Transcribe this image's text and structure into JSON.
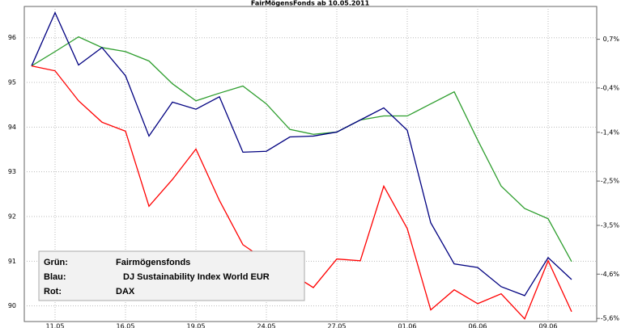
{
  "chart_data": {
    "type": "line",
    "title": "FairMögensFonds ab 10.05.2011",
    "categories": [
      null,
      "11.05",
      null,
      null,
      "16.05",
      null,
      null,
      "19.05",
      null,
      null,
      "24.05",
      null,
      null,
      "27.05",
      null,
      null,
      "01.06",
      null,
      null,
      "06.06",
      null,
      null,
      "09.06",
      null
    ],
    "series": [
      {
        "name": "Fairmögensfonds",
        "legend_label": "Grün:",
        "color": "#2e9e2e",
        "label_color": "#2ea02e",
        "values": [
          95.37,
          95.69,
          96.02,
          95.78,
          95.69,
          95.48,
          94.97,
          94.59,
          94.76,
          94.92,
          94.52,
          93.95,
          93.84,
          93.89,
          94.16,
          94.25,
          94.25,
          94.52,
          94.79,
          93.71,
          92.68,
          92.18,
          91.95,
          90.99
        ]
      },
      {
        "name": "DJ Sustainability Index World EUR",
        "legend_label": "Blau:",
        "color": "#000080",
        "label_color": "#1a6fc0",
        "values": [
          95.37,
          96.56,
          95.39,
          95.78,
          95.15,
          93.8,
          94.56,
          94.4,
          94.68,
          93.44,
          93.46,
          93.78,
          93.8,
          93.89,
          94.16,
          94.43,
          93.93,
          91.86,
          90.94,
          90.86,
          90.43,
          90.23,
          91.08,
          90.59
        ]
      },
      {
        "name": "DAX",
        "legend_label": "Rot:",
        "color": "#ff0000",
        "label_color": "#e00000",
        "values": [
          95.37,
          95.26,
          94.59,
          94.11,
          93.91,
          92.23,
          92.83,
          93.51,
          92.36,
          91.37,
          91.01,
          90.74,
          90.41,
          91.05,
          91.01,
          92.68,
          91.73,
          89.91,
          90.36,
          90.05,
          90.27,
          89.71,
          91.01,
          89.87
        ]
      }
    ],
    "ylim": [
      89.65,
      96.7
    ],
    "yticks": [
      90,
      91,
      92,
      93,
      94,
      95,
      96
    ],
    "y2lim": [
      -5.67,
      1.44
    ],
    "y2ticks": [
      {
        "value": 0.7,
        "label": "0,7%"
      },
      {
        "value": -0.4,
        "label": "-0,4%"
      },
      {
        "value": -1.4,
        "label": "-1,4%"
      },
      {
        "value": -2.5,
        "label": "-2,5%"
      },
      {
        "value": -3.5,
        "label": "-3,5%"
      },
      {
        "value": -4.6,
        "label": "-4,6%"
      },
      {
        "value": -5.6,
        "label": "-5,6%"
      }
    ],
    "grid": true
  }
}
